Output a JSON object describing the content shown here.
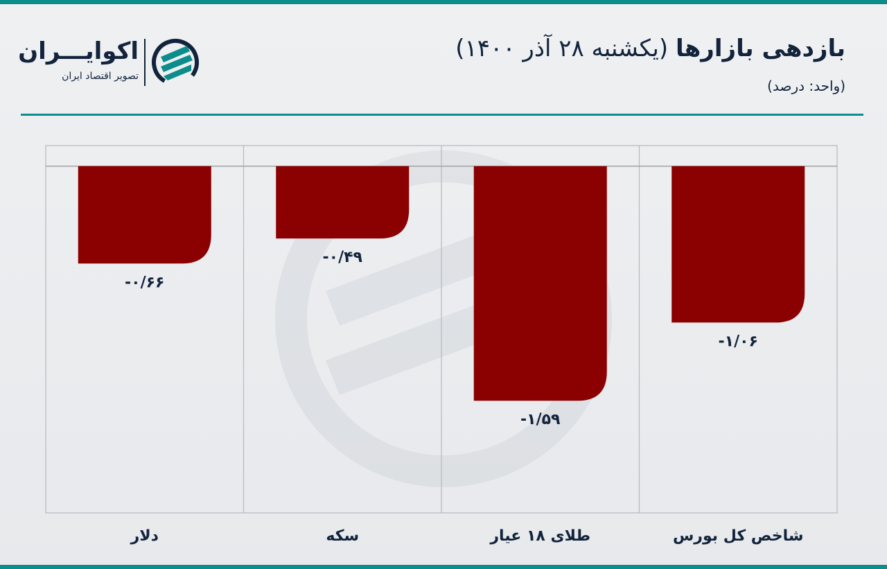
{
  "brand": {
    "name": "اکوایـــران",
    "tagline": "تصویر اقتصاد ایران",
    "logo_icon": "ecoiran-logo-icon",
    "accent_color": "#0d8c8c"
  },
  "header": {
    "title_main": "بازدهی بازارها",
    "title_rest": " (یکشنبه ۲۸ آذر ۱۴۰۰)",
    "unit": "(واحد: درصد)"
  },
  "chart_data": {
    "type": "bar",
    "categories": [
      "شاخص کل بورس",
      "طلای ۱۸ عیار",
      "سکه",
      "دلار"
    ],
    "values": [
      -1.06,
      -1.59,
      -0.49,
      -0.66
    ],
    "value_labels": [
      "-۱/۰۶",
      "-۱/۵۹",
      "-۰/۴۹",
      "-۰/۶۶"
    ],
    "ylim": [
      -2.35,
      0.14
    ],
    "bar_color": "#8b0000",
    "grid": true,
    "legend": "none"
  }
}
